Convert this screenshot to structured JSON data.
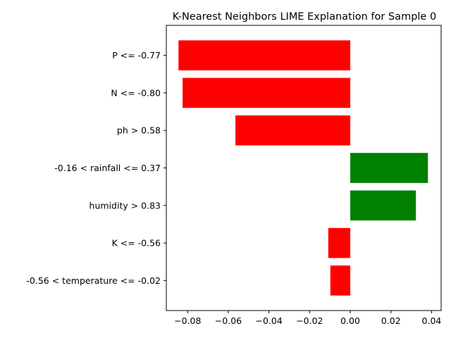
{
  "chart_data": {
    "type": "bar",
    "orientation": "horizontal",
    "title": "K-Nearest Neighbors LIME Explanation for Sample 0",
    "xlabel": "",
    "ylabel": "",
    "categories": [
      "P <= -0.77",
      "N <= -0.80",
      "ph > 0.58",
      "-0.16 < rainfall <= 0.37",
      "humidity > 0.83",
      "K <= -0.56",
      "-0.56 < temperature <= -0.02"
    ],
    "values": [
      -0.0845,
      -0.0825,
      -0.0565,
      0.0382,
      0.0323,
      -0.0108,
      -0.0098
    ],
    "xlim": [
      -0.0905,
      0.0447
    ],
    "xticks": [
      -0.08,
      -0.06,
      -0.04,
      -0.02,
      0.0,
      0.02,
      0.04
    ],
    "xtick_labels": [
      "−0.08",
      "−0.06",
      "−0.04",
      "−0.02",
      "0.00",
      "0.02",
      "0.04"
    ],
    "colors": {
      "positive": "#008000",
      "negative": "#ff0000"
    },
    "grid": false,
    "legend": "none"
  }
}
